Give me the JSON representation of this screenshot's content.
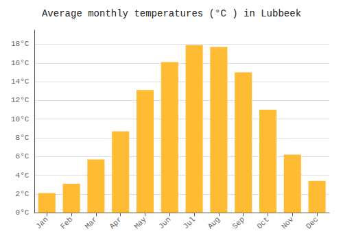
{
  "chart_data": {
    "type": "bar",
    "title": "Average monthly temperatures (°C ) in Lubbeek",
    "categories": [
      "Jan",
      "Feb",
      "Mar",
      "Apr",
      "May",
      "Jun",
      "Jul",
      "Aug",
      "Sep",
      "Oct",
      "Nov",
      "Dec"
    ],
    "values": [
      2.1,
      3.1,
      5.7,
      8.7,
      13.1,
      16.1,
      17.9,
      17.7,
      15.0,
      11.0,
      6.2,
      3.4
    ],
    "color": "#FFBB33",
    "ylim": [
      0,
      19.5
    ],
    "yticks": [
      {
        "value": 0,
        "label": "0°C"
      },
      {
        "value": 2,
        "label": "2°C"
      },
      {
        "value": 4,
        "label": "4°C"
      },
      {
        "value": 6,
        "label": "6°C"
      },
      {
        "value": 8,
        "label": "8°C"
      },
      {
        "value": 10,
        "label": "10°C"
      },
      {
        "value": 12,
        "label": "12°C"
      },
      {
        "value": 14,
        "label": "14°C"
      },
      {
        "value": 16,
        "label": "16°C"
      },
      {
        "value": 18,
        "label": "18°C"
      }
    ],
    "grid": true
  }
}
